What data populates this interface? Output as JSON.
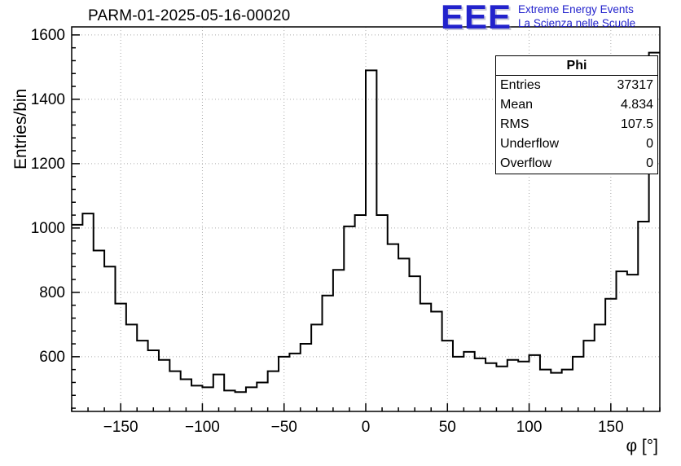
{
  "header": {
    "title": "PARM-01-2025-05-16-00020",
    "logo": {
      "acronym": "EEE",
      "line1": "Extreme Energy Events",
      "line2": "La Scienza nelle Scuole",
      "color": "#2222cc"
    }
  },
  "stats": {
    "header": "Phi",
    "rows": [
      {
        "label": "Entries",
        "value": "37317"
      },
      {
        "label": "Mean",
        "value": "4.834"
      },
      {
        "label": "RMS",
        "value": "107.5"
      },
      {
        "label": "Underflow",
        "value": "0"
      },
      {
        "label": "Overflow",
        "value": "0"
      }
    ]
  },
  "chart_data": {
    "type": "bar",
    "subtype": "step-histogram",
    "title": "PARM-01-2025-05-16-00020",
    "xlabel": "φ [°]",
    "ylabel": "Entries/bin",
    "xlim": [
      -180,
      180
    ],
    "ylim": [
      430,
      1625
    ],
    "n_bins": 54,
    "grid": true,
    "legend": "none",
    "line_color": "#000000",
    "grid_color": "#aaaaaa",
    "x_ticks": [
      {
        "v": -150,
        "label": "−150"
      },
      {
        "v": -100,
        "label": "−100"
      },
      {
        "v": -50,
        "label": "−50"
      },
      {
        "v": 0,
        "label": "0"
      },
      {
        "v": 50,
        "label": "50"
      },
      {
        "v": 100,
        "label": "100"
      },
      {
        "v": 150,
        "label": "150"
      }
    ],
    "y_ticks": [
      {
        "v": 600,
        "label": "600"
      },
      {
        "v": 800,
        "label": "800"
      },
      {
        "v": 1000,
        "label": "1000"
      },
      {
        "v": 1200,
        "label": "1200"
      },
      {
        "v": 1400,
        "label": "1400"
      },
      {
        "v": 1600,
        "label": "1600"
      }
    ],
    "x_minor_step": 10,
    "y_minor_step": 40,
    "values": [
      1010,
      1045,
      930,
      880,
      765,
      700,
      650,
      620,
      590,
      555,
      530,
      510,
      505,
      545,
      495,
      490,
      505,
      520,
      555,
      600,
      610,
      640,
      700,
      790,
      870,
      1005,
      1040,
      1490,
      1040,
      950,
      905,
      850,
      765,
      740,
      650,
      600,
      615,
      595,
      580,
      570,
      590,
      585,
      605,
      560,
      550,
      560,
      600,
      650,
      700,
      780,
      865,
      855,
      1020,
      1545
    ]
  }
}
